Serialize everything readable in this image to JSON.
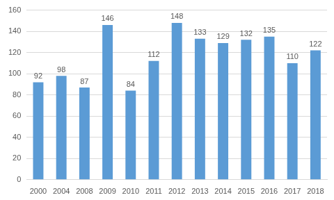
{
  "chart_data": {
    "type": "bar",
    "categories": [
      "2000",
      "2004",
      "2008",
      "2009",
      "2010",
      "2011",
      "2012",
      "2013",
      "2014",
      "2015",
      "2016",
      "2017",
      "2018"
    ],
    "values": [
      92,
      98,
      87,
      146,
      84,
      112,
      148,
      133,
      129,
      132,
      135,
      110,
      122
    ],
    "color": "#5b9bd5",
    "ylim": [
      0,
      160
    ],
    "yticks": [
      0,
      20,
      40,
      60,
      80,
      100,
      120,
      140,
      160
    ],
    "grid": true,
    "data_labels": true
  }
}
